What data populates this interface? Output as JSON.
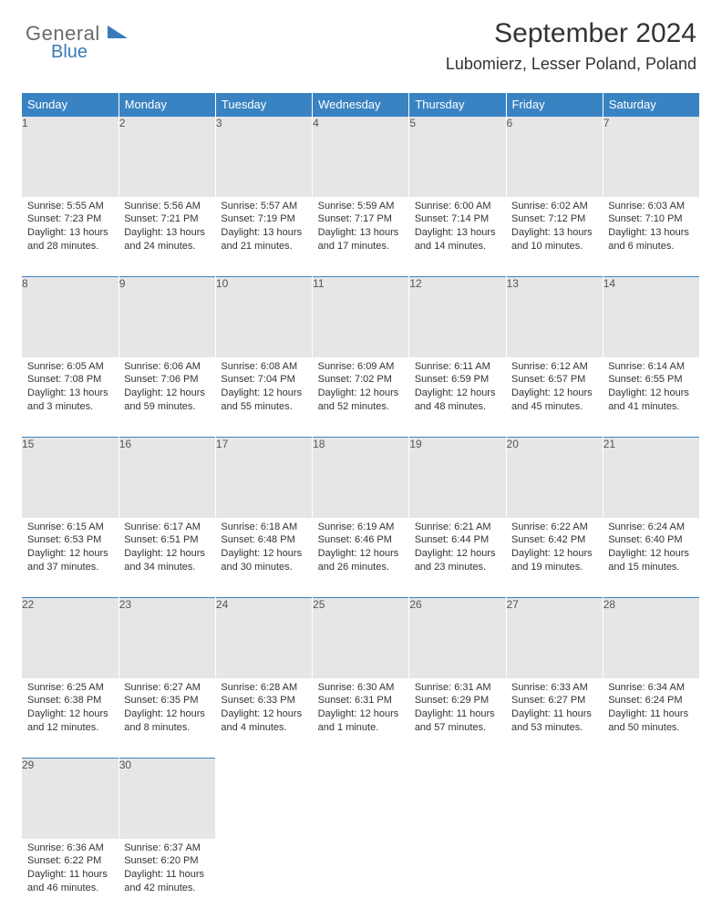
{
  "brand": {
    "part1": "General",
    "part2": "Blue"
  },
  "title": "September 2024",
  "subtitle": "Lubomierz, Lesser Poland, Poland",
  "colors": {
    "header_bg": "#3a83c3",
    "header_fg": "#ffffff",
    "daynum_bg": "#e6e6e6",
    "border": "#3a83c3",
    "logo_gray": "#6a6a6a",
    "logo_blue": "#3a7ab8"
  },
  "font": {
    "day_header_size": 13,
    "cell_size": 11,
    "title_size": 30,
    "subtitle_size": 18
  },
  "day_headers": [
    "Sunday",
    "Monday",
    "Tuesday",
    "Wednesday",
    "Thursday",
    "Friday",
    "Saturday"
  ],
  "weeks": [
    {
      "nums": [
        "1",
        "2",
        "3",
        "4",
        "5",
        "6",
        "7"
      ],
      "cells": [
        {
          "sunrise": "Sunrise: 5:55 AM",
          "sunset": "Sunset: 7:23 PM",
          "day1": "Daylight: 13 hours",
          "day2": "and 28 minutes."
        },
        {
          "sunrise": "Sunrise: 5:56 AM",
          "sunset": "Sunset: 7:21 PM",
          "day1": "Daylight: 13 hours",
          "day2": "and 24 minutes."
        },
        {
          "sunrise": "Sunrise: 5:57 AM",
          "sunset": "Sunset: 7:19 PM",
          "day1": "Daylight: 13 hours",
          "day2": "and 21 minutes."
        },
        {
          "sunrise": "Sunrise: 5:59 AM",
          "sunset": "Sunset: 7:17 PM",
          "day1": "Daylight: 13 hours",
          "day2": "and 17 minutes."
        },
        {
          "sunrise": "Sunrise: 6:00 AM",
          "sunset": "Sunset: 7:14 PM",
          "day1": "Daylight: 13 hours",
          "day2": "and 14 minutes."
        },
        {
          "sunrise": "Sunrise: 6:02 AM",
          "sunset": "Sunset: 7:12 PM",
          "day1": "Daylight: 13 hours",
          "day2": "and 10 minutes."
        },
        {
          "sunrise": "Sunrise: 6:03 AM",
          "sunset": "Sunset: 7:10 PM",
          "day1": "Daylight: 13 hours",
          "day2": "and 6 minutes."
        }
      ]
    },
    {
      "nums": [
        "8",
        "9",
        "10",
        "11",
        "12",
        "13",
        "14"
      ],
      "cells": [
        {
          "sunrise": "Sunrise: 6:05 AM",
          "sunset": "Sunset: 7:08 PM",
          "day1": "Daylight: 13 hours",
          "day2": "and 3 minutes."
        },
        {
          "sunrise": "Sunrise: 6:06 AM",
          "sunset": "Sunset: 7:06 PM",
          "day1": "Daylight: 12 hours",
          "day2": "and 59 minutes."
        },
        {
          "sunrise": "Sunrise: 6:08 AM",
          "sunset": "Sunset: 7:04 PM",
          "day1": "Daylight: 12 hours",
          "day2": "and 55 minutes."
        },
        {
          "sunrise": "Sunrise: 6:09 AM",
          "sunset": "Sunset: 7:02 PM",
          "day1": "Daylight: 12 hours",
          "day2": "and 52 minutes."
        },
        {
          "sunrise": "Sunrise: 6:11 AM",
          "sunset": "Sunset: 6:59 PM",
          "day1": "Daylight: 12 hours",
          "day2": "and 48 minutes."
        },
        {
          "sunrise": "Sunrise: 6:12 AM",
          "sunset": "Sunset: 6:57 PM",
          "day1": "Daylight: 12 hours",
          "day2": "and 45 minutes."
        },
        {
          "sunrise": "Sunrise: 6:14 AM",
          "sunset": "Sunset: 6:55 PM",
          "day1": "Daylight: 12 hours",
          "day2": "and 41 minutes."
        }
      ]
    },
    {
      "nums": [
        "15",
        "16",
        "17",
        "18",
        "19",
        "20",
        "21"
      ],
      "cells": [
        {
          "sunrise": "Sunrise: 6:15 AM",
          "sunset": "Sunset: 6:53 PM",
          "day1": "Daylight: 12 hours",
          "day2": "and 37 minutes."
        },
        {
          "sunrise": "Sunrise: 6:17 AM",
          "sunset": "Sunset: 6:51 PM",
          "day1": "Daylight: 12 hours",
          "day2": "and 34 minutes."
        },
        {
          "sunrise": "Sunrise: 6:18 AM",
          "sunset": "Sunset: 6:48 PM",
          "day1": "Daylight: 12 hours",
          "day2": "and 30 minutes."
        },
        {
          "sunrise": "Sunrise: 6:19 AM",
          "sunset": "Sunset: 6:46 PM",
          "day1": "Daylight: 12 hours",
          "day2": "and 26 minutes."
        },
        {
          "sunrise": "Sunrise: 6:21 AM",
          "sunset": "Sunset: 6:44 PM",
          "day1": "Daylight: 12 hours",
          "day2": "and 23 minutes."
        },
        {
          "sunrise": "Sunrise: 6:22 AM",
          "sunset": "Sunset: 6:42 PM",
          "day1": "Daylight: 12 hours",
          "day2": "and 19 minutes."
        },
        {
          "sunrise": "Sunrise: 6:24 AM",
          "sunset": "Sunset: 6:40 PM",
          "day1": "Daylight: 12 hours",
          "day2": "and 15 minutes."
        }
      ]
    },
    {
      "nums": [
        "22",
        "23",
        "24",
        "25",
        "26",
        "27",
        "28"
      ],
      "cells": [
        {
          "sunrise": "Sunrise: 6:25 AM",
          "sunset": "Sunset: 6:38 PM",
          "day1": "Daylight: 12 hours",
          "day2": "and 12 minutes."
        },
        {
          "sunrise": "Sunrise: 6:27 AM",
          "sunset": "Sunset: 6:35 PM",
          "day1": "Daylight: 12 hours",
          "day2": "and 8 minutes."
        },
        {
          "sunrise": "Sunrise: 6:28 AM",
          "sunset": "Sunset: 6:33 PM",
          "day1": "Daylight: 12 hours",
          "day2": "and 4 minutes."
        },
        {
          "sunrise": "Sunrise: 6:30 AM",
          "sunset": "Sunset: 6:31 PM",
          "day1": "Daylight: 12 hours",
          "day2": "and 1 minute."
        },
        {
          "sunrise": "Sunrise: 6:31 AM",
          "sunset": "Sunset: 6:29 PM",
          "day1": "Daylight: 11 hours",
          "day2": "and 57 minutes."
        },
        {
          "sunrise": "Sunrise: 6:33 AM",
          "sunset": "Sunset: 6:27 PM",
          "day1": "Daylight: 11 hours",
          "day2": "and 53 minutes."
        },
        {
          "sunrise": "Sunrise: 6:34 AM",
          "sunset": "Sunset: 6:24 PM",
          "day1": "Daylight: 11 hours",
          "day2": "and 50 minutes."
        }
      ]
    },
    {
      "nums": [
        "29",
        "30",
        "",
        "",
        "",
        "",
        ""
      ],
      "cells": [
        {
          "sunrise": "Sunrise: 6:36 AM",
          "sunset": "Sunset: 6:22 PM",
          "day1": "Daylight: 11 hours",
          "day2": "and 46 minutes."
        },
        {
          "sunrise": "Sunrise: 6:37 AM",
          "sunset": "Sunset: 6:20 PM",
          "day1": "Daylight: 11 hours",
          "day2": "and 42 minutes."
        },
        null,
        null,
        null,
        null,
        null
      ]
    }
  ]
}
